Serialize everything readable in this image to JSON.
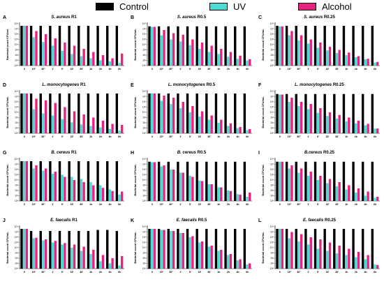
{
  "legend": {
    "items": [
      {
        "label": "Control",
        "color": "#000000"
      },
      {
        "label": "UV",
        "color": "#4dd9d4"
      },
      {
        "label": "Alcohol",
        "color": "#e8237f"
      }
    ]
  },
  "colors": {
    "control": "#000000",
    "uv": "#4dd9d4",
    "alcohol": "#e8237f"
  },
  "chart_data": [
    {
      "type": "bar",
      "panel": "A",
      "organism": "S. aureus",
      "suffix": " R1",
      "xlabel": "",
      "ylabel": "Bacterial count CFU/ml",
      "categories": [
        "0",
        "15\"",
        "30\"",
        "1'",
        "5'",
        "15'",
        "30'",
        "1h",
        "2h",
        "4h",
        "6h"
      ],
      "ylim": [
        0,
        8
      ],
      "yscale": "log",
      "grid": false,
      "series": [
        {
          "name": "Control",
          "values": [
            7.6,
            7.6,
            7.6,
            7.6,
            7.6,
            7.6,
            7.6,
            7.6,
            7.6,
            7.6,
            7.6
          ]
        },
        {
          "name": "UV",
          "values": [
            7.6,
            5.4,
            4.5,
            3.8,
            2.8,
            2.2,
            1.8,
            1.4,
            1.0,
            0.8,
            0.5
          ]
        },
        {
          "name": "Alcohol",
          "values": [
            7.6,
            6.6,
            6.0,
            5.2,
            4.4,
            3.8,
            3.2,
            2.6,
            2.0,
            1.4,
            2.3
          ]
        }
      ]
    },
    {
      "type": "bar",
      "panel": "B",
      "organism": "S. aureus",
      "suffix": " R0.5",
      "xlabel": "",
      "ylabel": "Bacterial count CFU/mL",
      "categories": [
        "0",
        "15\"",
        "30\"",
        "1'",
        "5'",
        "15'",
        "30'",
        "1h",
        "2h",
        "4h",
        "6h"
      ],
      "ylim": [
        0,
        8
      ],
      "yscale": "log",
      "grid": false,
      "series": [
        {
          "name": "Control",
          "values": [
            7.5,
            7.5,
            7.5,
            7.5,
            7.5,
            7.5,
            7.5,
            7.5,
            7.5,
            7.5,
            7.5
          ]
        },
        {
          "name": "UV",
          "values": [
            7.4,
            5.8,
            5.0,
            4.6,
            3.9,
            3.2,
            2.6,
            2.2,
            1.7,
            1.3,
            1.0
          ]
        },
        {
          "name": "Alcohol",
          "values": [
            7.4,
            6.8,
            6.2,
            5.9,
            5.0,
            4.4,
            3.8,
            3.2,
            2.6,
            1.9,
            1.2
          ]
        }
      ]
    },
    {
      "type": "bar",
      "panel": "C",
      "organism": "S. aureus",
      "suffix": " R0.25",
      "xlabel": "",
      "ylabel": "Bacterial count CFU/mL",
      "categories": [
        "0",
        "15\"",
        "30\"",
        "1'",
        "5'",
        "15'",
        "30'",
        "1h",
        "2h",
        "4h",
        "6h"
      ],
      "ylim": [
        0,
        8
      ],
      "yscale": "log",
      "grid": false,
      "series": [
        {
          "name": "Control",
          "values": [
            7.6,
            7.6,
            7.6,
            7.6,
            7.6,
            7.6,
            7.6,
            7.6,
            7.6,
            7.6,
            7.6
          ]
        },
        {
          "name": "UV",
          "values": [
            7.5,
            5.8,
            4.8,
            4.2,
            3.4,
            2.9,
            2.4,
            2.0,
            1.6,
            1.2,
            0.6
          ]
        },
        {
          "name": "Alcohol",
          "values": [
            7.5,
            6.6,
            5.8,
            5.0,
            4.4,
            3.6,
            3.0,
            2.5,
            1.8,
            1.3,
            0.7
          ]
        }
      ]
    },
    {
      "type": "bar",
      "panel": "D",
      "organism": "L. monocytogenes",
      "suffix": " R1",
      "xlabel": "",
      "ylabel": "Bacterial count CFU/mL",
      "categories": [
        "0",
        "15\"",
        "30\"",
        "1'",
        "5'",
        "15'",
        "30'",
        "1h",
        "2h",
        "4h",
        "6h"
      ],
      "ylim": [
        0,
        8
      ],
      "yscale": "log",
      "grid": false,
      "series": [
        {
          "name": "Control",
          "values": [
            7.6,
            7.6,
            7.6,
            7.6,
            7.6,
            7.6,
            7.6,
            7.6,
            7.6,
            7.6,
            7.6
          ]
        },
        {
          "name": "UV",
          "values": [
            7.6,
            4.6,
            3.8,
            3.4,
            2.7,
            2.1,
            1.7,
            1.4,
            1.1,
            0.8,
            0.5
          ]
        },
        {
          "name": "Alcohol",
          "values": [
            7.6,
            6.6,
            6.3,
            5.8,
            5.0,
            4.2,
            3.6,
            3.0,
            2.4,
            1.8,
            1.6
          ]
        }
      ]
    },
    {
      "type": "bar",
      "panel": "E",
      "organism": "L. monocytogenes",
      "suffix": " R0.5",
      "xlabel": "",
      "ylabel": "Bacterial count CFU/mL",
      "categories": [
        "0",
        "15\"",
        "30\"",
        "1'",
        "5'",
        "15'",
        "30'",
        "1h",
        "2h",
        "4h",
        "6h"
      ],
      "ylim": [
        0,
        8
      ],
      "yscale": "log",
      "grid": false,
      "series": [
        {
          "name": "Control",
          "values": [
            7.6,
            7.6,
            7.6,
            7.6,
            7.6,
            7.6,
            7.6,
            7.6,
            7.6,
            7.6,
            7.6
          ]
        },
        {
          "name": "UV",
          "values": [
            7.6,
            6.2,
            5.6,
            4.8,
            4.0,
            3.2,
            2.6,
            2.0,
            1.4,
            1.0,
            0.6
          ]
        },
        {
          "name": "Alcohol",
          "values": [
            7.6,
            7.2,
            6.8,
            6.0,
            5.2,
            4.2,
            3.4,
            2.6,
            1.9,
            1.2,
            0.8
          ]
        }
      ]
    },
    {
      "type": "bar",
      "panel": "F",
      "organism": "L. monocytogenes",
      "suffix": " R0.25",
      "xlabel": "",
      "ylabel": "Bacterial count CFU/mL",
      "categories": [
        "0",
        "15\"",
        "30\"",
        "1'",
        "5'",
        "15'",
        "30'",
        "1h",
        "2h",
        "4h",
        "6h"
      ],
      "ylim": [
        0,
        8
      ],
      "yscale": "log",
      "grid": false,
      "series": [
        {
          "name": "Control",
          "values": [
            7.5,
            7.5,
            7.5,
            7.5,
            7.5,
            7.5,
            7.5,
            7.5,
            7.5,
            7.5,
            7.5
          ]
        },
        {
          "name": "UV",
          "values": [
            7.4,
            6.0,
            5.2,
            4.6,
            3.9,
            3.3,
            2.8,
            2.3,
            1.9,
            1.5,
            0.9
          ]
        },
        {
          "name": "Alcohol",
          "values": [
            7.4,
            6.8,
            6.0,
            5.6,
            4.8,
            4.0,
            3.5,
            3.0,
            2.4,
            1.8,
            0.9
          ]
        }
      ]
    },
    {
      "type": "bar",
      "panel": "G",
      "organism": "B. cereus",
      "suffix": " R1",
      "xlabel": "",
      "ylabel": "Bacterial count CFU/mL",
      "categories": [
        "0",
        "15\"",
        "30\"",
        "1'",
        "5'",
        "15'",
        "30'",
        "1h",
        "2h",
        "4h",
        "6h"
      ],
      "ylim": [
        0,
        8
      ],
      "yscale": "log",
      "grid": false,
      "series": [
        {
          "name": "Control",
          "values": [
            7.6,
            7.6,
            7.6,
            7.6,
            7.6,
            7.6,
            7.6,
            7.6,
            7.6,
            7.6,
            7.6
          ]
        },
        {
          "name": "UV",
          "values": [
            7.6,
            6.2,
            5.8,
            5.2,
            5.0,
            4.6,
            4.2,
            3.6,
            3.0,
            2.2,
            1.2
          ]
        },
        {
          "name": "Alcohol",
          "values": [
            7.6,
            6.8,
            6.2,
            5.6,
            4.6,
            4.0,
            3.6,
            3.0,
            2.5,
            1.9,
            1.8
          ]
        }
      ]
    },
    {
      "type": "bar",
      "panel": "H",
      "organism": "B. cereus",
      "suffix": " R0.5",
      "xlabel": "",
      "ylabel": "Bacterial count CFU/mL",
      "categories": [
        "0",
        "15\"",
        "30\"",
        "1'",
        "5'",
        "15'",
        "30'",
        "1h",
        "2h",
        "4h",
        "6h"
      ],
      "ylim": [
        0,
        8
      ],
      "yscale": "log",
      "grid": false,
      "series": [
        {
          "name": "Control",
          "values": [
            7.5,
            7.5,
            7.5,
            7.5,
            7.5,
            7.5,
            7.5,
            7.5,
            7.5,
            7.5,
            7.5
          ]
        },
        {
          "name": "UV",
          "values": [
            7.4,
            6.6,
            6.0,
            5.4,
            4.8,
            3.9,
            3.2,
            2.6,
            2.0,
            1.3,
            0.8
          ]
        },
        {
          "name": "Alcohol",
          "values": [
            7.4,
            6.8,
            6.0,
            5.4,
            4.6,
            3.8,
            3.2,
            2.6,
            1.9,
            1.2,
            1.6
          ]
        }
      ]
    },
    {
      "type": "bar",
      "panel": "I",
      "organism": "B.cereus",
      "suffix": " R0.25",
      "xlabel": "",
      "ylabel": "Bacterial count CFU/mL",
      "categories": [
        "0",
        "15\"",
        "30\"",
        "1'",
        "5'",
        "15'",
        "30'",
        "1h",
        "2h",
        "4h",
        "6h"
      ],
      "ylim": [
        0,
        8
      ],
      "yscale": "log",
      "grid": false,
      "series": [
        {
          "name": "Control",
          "values": [
            7.5,
            7.5,
            7.5,
            7.5,
            7.5,
            7.5,
            7.5,
            7.5,
            7.5,
            7.5,
            7.5
          ]
        },
        {
          "name": "UV",
          "values": [
            7.5,
            6.2,
            5.4,
            4.8,
            4.0,
            3.4,
            2.8,
            2.2,
            1.6,
            1.0,
            0.6
          ]
        },
        {
          "name": "Alcohol",
          "values": [
            7.5,
            6.8,
            6.2,
            5.6,
            4.8,
            4.2,
            3.6,
            3.0,
            2.4,
            1.8,
            0.8
          ]
        }
      ]
    },
    {
      "type": "bar",
      "panel": "J",
      "organism": "E. faecalis",
      "suffix": " R1",
      "xlabel": "",
      "ylabel": "Bacterial count CFU/mL",
      "categories": [
        "0",
        "15\"",
        "30\"",
        "1'",
        "5'",
        "15'",
        "30'",
        "1h",
        "2h",
        "4h",
        "6h"
      ],
      "ylim": [
        0,
        8
      ],
      "yscale": "log",
      "grid": false,
      "series": [
        {
          "name": "Control",
          "values": [
            7.6,
            7.2,
            7.2,
            7.2,
            7.2,
            7.2,
            7.2,
            7.2,
            7.4,
            7.4,
            7.2
          ]
        },
        {
          "name": "UV",
          "values": [
            7.6,
            5.8,
            5.4,
            5.0,
            4.6,
            4.0,
            3.4,
            2.8,
            1.4,
            1.0,
            0.6
          ]
        },
        {
          "name": "Alcohol",
          "values": [
            7.6,
            5.9,
            5.6,
            5.3,
            4.9,
            4.6,
            4.2,
            3.6,
            2.6,
            2.0,
            2.4
          ]
        }
      ]
    },
    {
      "type": "bar",
      "panel": "K",
      "organism": "E. faecalis",
      "suffix": " R0.5",
      "xlabel": "",
      "ylabel": "Bacterial count CFU/mL",
      "categories": [
        "0",
        "15\"",
        "30\"",
        "1'",
        "5'",
        "15'",
        "30'",
        "1h",
        "2h",
        "4h",
        "6h"
      ],
      "ylim": [
        0,
        8
      ],
      "yscale": "log",
      "grid": false,
      "series": [
        {
          "name": "Control",
          "values": [
            7.6,
            7.6,
            7.6,
            7.6,
            7.6,
            7.6,
            7.6,
            7.6,
            7.6,
            7.6,
            7.6
          ]
        },
        {
          "name": "UV",
          "values": [
            7.6,
            7.4,
            7.2,
            6.8,
            6.0,
            5.0,
            4.2,
            3.4,
            2.6,
            1.6,
            0.8
          ]
        },
        {
          "name": "Alcohol",
          "values": [
            7.6,
            7.4,
            7.2,
            6.8,
            6.2,
            5.2,
            4.4,
            3.6,
            2.8,
            1.8,
            1.0
          ]
        }
      ]
    },
    {
      "type": "bar",
      "panel": "L",
      "organism": "E. faecalis",
      "suffix": " R0.25",
      "xlabel": "",
      "ylabel": "Bacterial count CFU/mL",
      "categories": [
        "0",
        "15\"",
        "30\"",
        "1'",
        "5'",
        "15'",
        "30'",
        "1h",
        "2h",
        "4h",
        "6h"
      ],
      "ylim": [
        0,
        8
      ],
      "yscale": "log",
      "grid": false,
      "series": [
        {
          "name": "Control",
          "values": [
            7.6,
            7.6,
            7.6,
            7.6,
            7.6,
            7.6,
            7.6,
            7.6,
            7.6,
            7.6,
            7.6
          ]
        },
        {
          "name": "UV",
          "values": [
            7.6,
            5.8,
            5.2,
            4.6,
            3.8,
            3.4,
            2.9,
            2.6,
            2.2,
            1.8,
            0.8
          ]
        },
        {
          "name": "Alcohol",
          "values": [
            7.6,
            7.0,
            6.6,
            6.0,
            5.6,
            5.0,
            4.4,
            3.8,
            3.2,
            2.6,
            0.7
          ]
        }
      ]
    }
  ]
}
